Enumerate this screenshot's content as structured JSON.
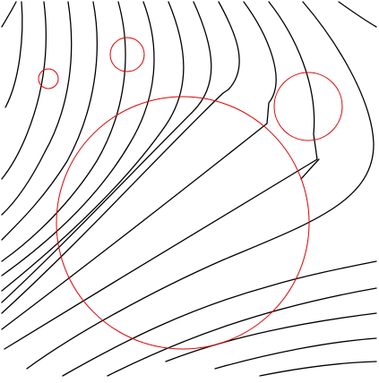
{
  "figure": {
    "background": "#ffffff",
    "line_color": "#000000",
    "circle_color": "#e00000",
    "streamline_count": 20,
    "obstacle_count": 4
  }
}
